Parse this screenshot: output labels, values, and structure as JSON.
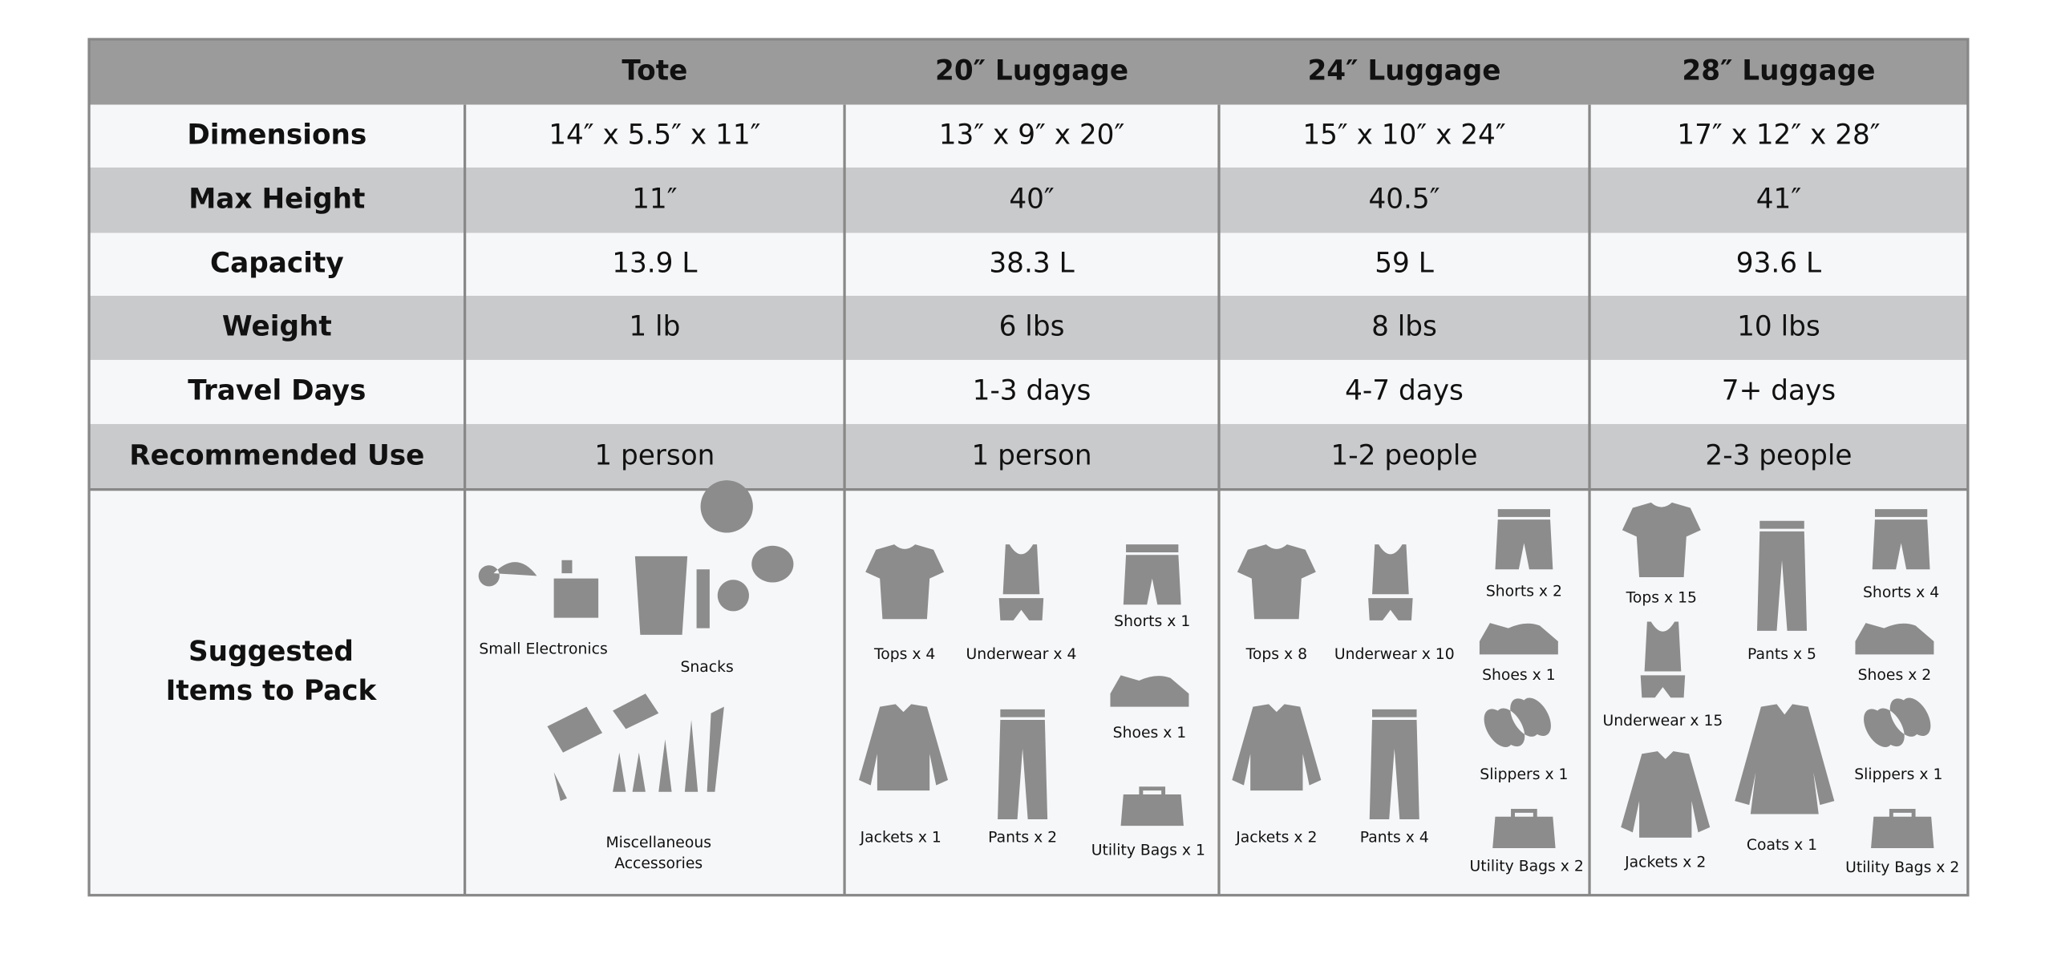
{
  "table": {
    "header": [
      "Tote",
      "20″ Luggage",
      "24″ Luggage",
      "28″ Luggage"
    ],
    "rows": [
      {
        "label": "Dimensions",
        "cells": [
          "14″ x 5.5″ x 11″",
          "13″ x 9″ x 20″",
          "15″ x 10″ x 24″",
          "17″ x 12″ x 28″"
        ]
      },
      {
        "label": "Max Height",
        "cells": [
          "11″",
          "40″",
          "40.5″",
          "41″"
        ]
      },
      {
        "label": "Capacity",
        "cells": [
          "13.9 L",
          "38.3 L",
          "59 L",
          "93.6 L"
        ]
      },
      {
        "label": "Weight",
        "cells": [
          "1 lb",
          "6 lbs",
          "8 lbs",
          "10 lbs"
        ]
      },
      {
        "label": "Travel Days",
        "cells": [
          null,
          "1-3 days",
          "4-7 days",
          "7+ days"
        ]
      },
      {
        "label": "Recommended Use",
        "cells": [
          "1 person",
          "1 person",
          "1-2 people",
          "2-3 people"
        ]
      }
    ],
    "items_label": [
      "Suggested",
      "Items to Pack"
    ],
    "items": [
      [
        [
          "Small Electronics"
        ],
        [
          "Snacks"
        ],
        [
          "Miscellaneous",
          "Accessories"
        ]
      ],
      [
        [
          "Tops x 4"
        ],
        [
          "Underwear x 4"
        ],
        [
          "Shorts x 1"
        ],
        [
          "Shoes x 1"
        ],
        [
          "Jackets x 1"
        ],
        [
          "Pants x 2"
        ],
        [
          "Utility Bags x 1"
        ]
      ],
      [
        [
          "Tops x 8"
        ],
        [
          "Underwear x 10"
        ],
        [
          "Shorts x 2"
        ],
        [
          "Shoes x 1"
        ],
        [
          "Slippers x 1"
        ],
        [
          "Jackets x 2"
        ],
        [
          "Pants x 4"
        ],
        [
          "Utility Bags x 2"
        ]
      ],
      [
        [
          "Tops x 15"
        ],
        [
          "Pants x 5"
        ],
        [
          "Shorts x 4"
        ],
        [
          "Underwear x 15"
        ],
        [
          "Shoes x 2"
        ],
        [
          "Slippers x 1"
        ],
        [
          "Jackets x 2"
        ],
        [
          "Coats x 1"
        ],
        [
          "Utility Bags x 2"
        ]
      ]
    ]
  }
}
